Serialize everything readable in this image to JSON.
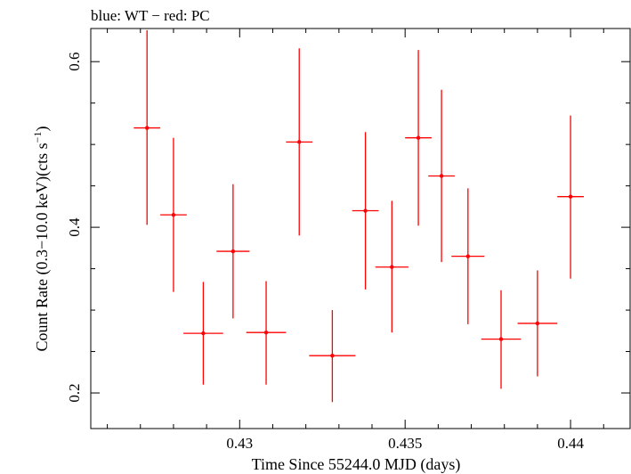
{
  "chart_data": {
    "type": "scatter",
    "title": "blue: WT − red: PC",
    "xlabel": "Time Since 55244.0 MJD (days)",
    "ylabel_main": "Count Rate (0.3−10.0 keV)(cts s",
    "ylabel_sup": "−1",
    "ylabel_end": ")",
    "xlim": [
      0.4255,
      0.4418
    ],
    "ylim": [
      0.157,
      0.64
    ],
    "x_ticks": [
      0.43,
      0.435,
      0.44
    ],
    "x_tick_labels": [
      "0.43",
      "0.435",
      "0.44"
    ],
    "y_ticks": [
      0.2,
      0.4,
      0.6
    ],
    "y_tick_labels": [
      "0.2",
      "0.4",
      "0.6"
    ],
    "grid": false,
    "series": [
      {
        "name": "PC",
        "color": "#ff0000",
        "points": [
          {
            "x": 0.4272,
            "y": 0.52,
            "xerr": 0.0004,
            "ylo": 0.403,
            "yhi": 0.638
          },
          {
            "x": 0.428,
            "y": 0.415,
            "xerr": 0.0004,
            "ylo": 0.322,
            "yhi": 0.508
          },
          {
            "x": 0.4289,
            "y": 0.272,
            "xerr": 0.0006,
            "ylo": 0.21,
            "yhi": 0.334
          },
          {
            "x": 0.4298,
            "y": 0.371,
            "xerr": 0.0005,
            "ylo": 0.29,
            "yhi": 0.452
          },
          {
            "x": 0.4308,
            "y": 0.273,
            "xerr": 0.0006,
            "ylo": 0.21,
            "yhi": 0.335
          },
          {
            "x": 0.4318,
            "y": 0.503,
            "xerr": 0.0004,
            "ylo": 0.39,
            "yhi": 0.616
          },
          {
            "x": 0.4328,
            "y": 0.245,
            "xerr": 0.0007,
            "ylo": 0.189,
            "yhi": 0.3
          },
          {
            "x": 0.4338,
            "y": 0.42,
            "xerr": 0.0004,
            "ylo": 0.325,
            "yhi": 0.515
          },
          {
            "x": 0.4346,
            "y": 0.352,
            "xerr": 0.0005,
            "ylo": 0.273,
            "yhi": 0.432
          },
          {
            "x": 0.4354,
            "y": 0.508,
            "xerr": 0.0004,
            "ylo": 0.402,
            "yhi": 0.614
          },
          {
            "x": 0.4361,
            "y": 0.462,
            "xerr": 0.0004,
            "ylo": 0.358,
            "yhi": 0.566
          },
          {
            "x": 0.4369,
            "y": 0.365,
            "xerr": 0.0005,
            "ylo": 0.283,
            "yhi": 0.447
          },
          {
            "x": 0.4379,
            "y": 0.265,
            "xerr": 0.0006,
            "ylo": 0.205,
            "yhi": 0.324
          },
          {
            "x": 0.439,
            "y": 0.284,
            "xerr": 0.0006,
            "ylo": 0.22,
            "yhi": 0.348
          },
          {
            "x": 0.44,
            "y": 0.437,
            "xerr": 0.0004,
            "ylo": 0.338,
            "yhi": 0.535
          }
        ]
      }
    ]
  }
}
